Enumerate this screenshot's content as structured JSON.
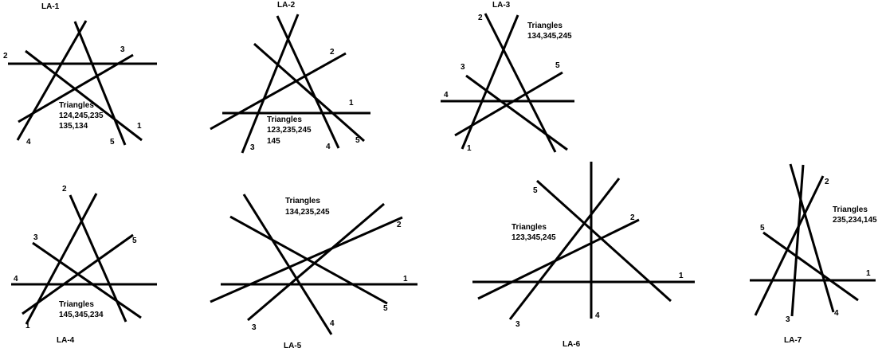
{
  "panels": [
    {
      "title": "LA-1",
      "labels": [
        "1",
        "2",
        "3",
        "4",
        "5"
      ],
      "triangles": [
        "Triangles",
        "124,245,235",
        "135,134"
      ]
    },
    {
      "title": "LA-2",
      "labels": [
        "1",
        "2",
        "3",
        "4",
        "5"
      ],
      "triangles": [
        "Triangles",
        "123,235,245",
        "145"
      ]
    },
    {
      "title": "LA-3",
      "labels": [
        "1",
        "2",
        "3",
        "4",
        "5"
      ],
      "triangles": [
        "Triangles",
        "134,345,245"
      ]
    },
    {
      "title": "LA-4",
      "labels": [
        "1",
        "2",
        "3",
        "4",
        "5"
      ],
      "triangles": [
        "Triangles",
        "145,345,234"
      ]
    },
    {
      "title": "LA-5",
      "labels": [
        "1",
        "2",
        "3",
        "4",
        "5"
      ],
      "triangles": [
        "Triangles",
        "134,235,245"
      ]
    },
    {
      "title": "LA-6",
      "labels": [
        "1",
        "2",
        "3",
        "4",
        "5"
      ],
      "triangles": [
        "Triangles",
        "123,345,245"
      ]
    },
    {
      "title": "LA-7",
      "labels": [
        "1",
        "2",
        "3",
        "4",
        "5"
      ],
      "triangles": [
        "Triangles",
        "235,234,145"
      ]
    }
  ]
}
